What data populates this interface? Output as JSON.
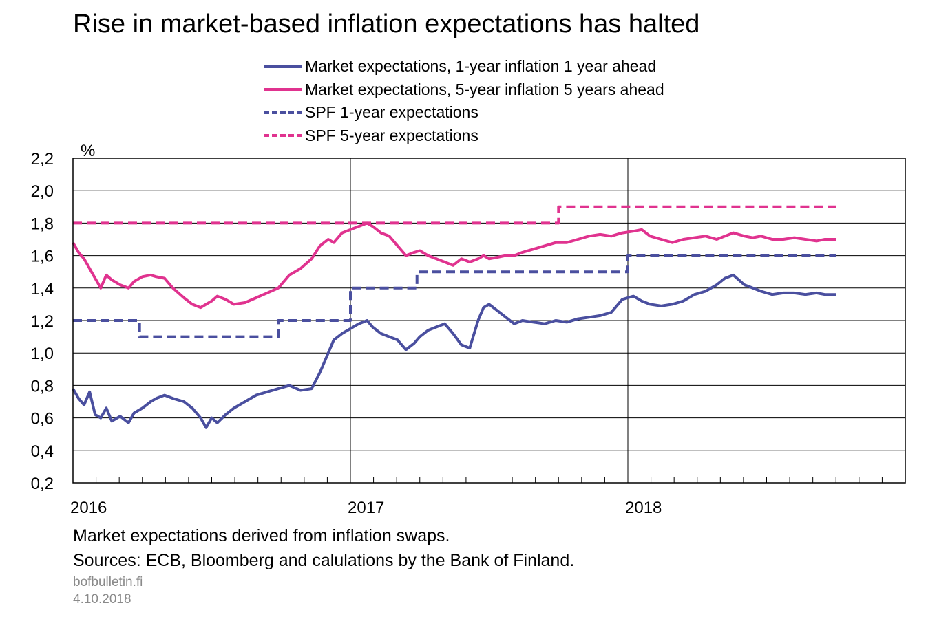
{
  "title": "Rise in market-based inflation expectations has halted",
  "notes": [
    "Market expectations derived from inflation swaps.",
    "Sources: ECB, Bloomberg and calulations by the Bank of Finland."
  ],
  "website": "bofbulletin.fi",
  "date": "4.10.2018",
  "chart_data": {
    "type": "line",
    "title": "Rise in market-based inflation expectations has halted",
    "ylabel": "%",
    "xlabel": "",
    "ylim": [
      0.2,
      2.2
    ],
    "yticks": [
      0.2,
      0.4,
      0.6,
      0.8,
      1.0,
      1.2,
      1.4,
      1.6,
      1.8,
      2.0,
      2.2
    ],
    "ytick_labels": [
      "0,2",
      "0,4",
      "0,6",
      "0,8",
      "1,0",
      "1,2",
      "1,4",
      "1,6",
      "1,8",
      "2,0",
      "2,2"
    ],
    "xlim": [
      2016.0,
      2019.0
    ],
    "xticks": [
      2016,
      2017,
      2018
    ],
    "xtick_labels": [
      "2016",
      "2017",
      "2018"
    ],
    "grid": true,
    "legend_position": "top-center",
    "series": [
      {
        "name": "Market expectations, 1-year inflation 1 year ahead",
        "color": "#4a4f9f",
        "style": "solid",
        "x": [
          2016.0,
          2016.02,
          2016.04,
          2016.06,
          2016.08,
          2016.1,
          2016.12,
          2016.14,
          2016.17,
          2016.2,
          2016.22,
          2016.25,
          2016.28,
          2016.3,
          2016.33,
          2016.36,
          2016.4,
          2016.43,
          2016.46,
          2016.48,
          2016.5,
          2016.52,
          2016.55,
          2016.58,
          2016.62,
          2016.66,
          2016.7,
          2016.74,
          2016.78,
          2016.82,
          2016.86,
          2016.89,
          2016.92,
          2016.94,
          2016.97,
          2017.0,
          2017.03,
          2017.06,
          2017.08,
          2017.11,
          2017.14,
          2017.17,
          2017.2,
          2017.23,
          2017.25,
          2017.28,
          2017.31,
          2017.34,
          2017.37,
          2017.4,
          2017.43,
          2017.46,
          2017.48,
          2017.5,
          2017.53,
          2017.56,
          2017.59,
          2017.62,
          2017.66,
          2017.7,
          2017.74,
          2017.78,
          2017.82,
          2017.86,
          2017.9,
          2017.94,
          2017.98,
          2018.02,
          2018.05,
          2018.08,
          2018.12,
          2018.16,
          2018.2,
          2018.24,
          2018.28,
          2018.32,
          2018.35,
          2018.38,
          2018.4,
          2018.42,
          2018.45,
          2018.48,
          2018.52,
          2018.56,
          2018.6,
          2018.64,
          2018.68,
          2018.71,
          2018.75
        ],
        "y": [
          0.78,
          0.72,
          0.68,
          0.76,
          0.62,
          0.6,
          0.66,
          0.58,
          0.61,
          0.57,
          0.63,
          0.66,
          0.7,
          0.72,
          0.74,
          0.72,
          0.7,
          0.66,
          0.6,
          0.54,
          0.6,
          0.57,
          0.62,
          0.66,
          0.7,
          0.74,
          0.76,
          0.78,
          0.8,
          0.77,
          0.78,
          0.88,
          1.0,
          1.08,
          1.12,
          1.15,
          1.18,
          1.2,
          1.16,
          1.12,
          1.1,
          1.08,
          1.02,
          1.06,
          1.1,
          1.14,
          1.16,
          1.18,
          1.12,
          1.05,
          1.03,
          1.2,
          1.28,
          1.3,
          1.26,
          1.22,
          1.18,
          1.2,
          1.19,
          1.18,
          1.2,
          1.19,
          1.21,
          1.22,
          1.23,
          1.25,
          1.33,
          1.35,
          1.32,
          1.3,
          1.29,
          1.3,
          1.32,
          1.36,
          1.38,
          1.42,
          1.46,
          1.48,
          1.45,
          1.42,
          1.4,
          1.38,
          1.36,
          1.37,
          1.37,
          1.36,
          1.37,
          1.36,
          1.36
        ]
      },
      {
        "name": "Market expectations, 5-year inflation 5 years ahead",
        "color": "#e0338f",
        "style": "solid",
        "x": [
          2016.0,
          2016.02,
          2016.04,
          2016.06,
          2016.08,
          2016.1,
          2016.12,
          2016.14,
          2016.17,
          2016.2,
          2016.22,
          2016.25,
          2016.28,
          2016.3,
          2016.33,
          2016.36,
          2016.4,
          2016.43,
          2016.46,
          2016.48,
          2016.5,
          2016.52,
          2016.55,
          2016.58,
          2016.62,
          2016.66,
          2016.7,
          2016.74,
          2016.78,
          2016.82,
          2016.86,
          2016.89,
          2016.92,
          2016.94,
          2016.97,
          2017.0,
          2017.03,
          2017.06,
          2017.08,
          2017.11,
          2017.14,
          2017.17,
          2017.2,
          2017.23,
          2017.25,
          2017.28,
          2017.31,
          2017.34,
          2017.37,
          2017.4,
          2017.43,
          2017.46,
          2017.48,
          2017.5,
          2017.53,
          2017.56,
          2017.59,
          2017.62,
          2017.66,
          2017.7,
          2017.74,
          2017.78,
          2017.82,
          2017.86,
          2017.9,
          2017.94,
          2017.98,
          2018.02,
          2018.05,
          2018.08,
          2018.12,
          2018.16,
          2018.2,
          2018.24,
          2018.28,
          2018.32,
          2018.35,
          2018.38,
          2018.4,
          2018.42,
          2018.45,
          2018.48,
          2018.52,
          2018.56,
          2018.6,
          2018.64,
          2018.68,
          2018.71,
          2018.75
        ],
        "y": [
          1.68,
          1.62,
          1.58,
          1.52,
          1.46,
          1.4,
          1.48,
          1.45,
          1.42,
          1.4,
          1.44,
          1.47,
          1.48,
          1.47,
          1.46,
          1.4,
          1.34,
          1.3,
          1.28,
          1.3,
          1.32,
          1.35,
          1.33,
          1.3,
          1.31,
          1.34,
          1.37,
          1.4,
          1.48,
          1.52,
          1.58,
          1.66,
          1.7,
          1.68,
          1.74,
          1.76,
          1.78,
          1.8,
          1.78,
          1.74,
          1.72,
          1.66,
          1.6,
          1.62,
          1.63,
          1.6,
          1.58,
          1.56,
          1.54,
          1.58,
          1.56,
          1.58,
          1.6,
          1.58,
          1.59,
          1.6,
          1.6,
          1.62,
          1.64,
          1.66,
          1.68,
          1.68,
          1.7,
          1.72,
          1.73,
          1.72,
          1.74,
          1.75,
          1.76,
          1.72,
          1.7,
          1.68,
          1.7,
          1.71,
          1.72,
          1.7,
          1.72,
          1.74,
          1.73,
          1.72,
          1.71,
          1.72,
          1.7,
          1.7,
          1.71,
          1.7,
          1.69,
          1.7,
          1.7
        ]
      },
      {
        "name": "SPF 1-year expectations",
        "color": "#4a4f9f",
        "style": "dashed",
        "x": [
          2016.0,
          2016.24,
          2016.24,
          2016.74,
          2016.74,
          2017.0,
          2017.0,
          2017.24,
          2017.24,
          2017.74,
          2017.74,
          2018.0,
          2018.0,
          2018.75
        ],
        "y": [
          1.2,
          1.2,
          1.1,
          1.1,
          1.2,
          1.2,
          1.4,
          1.4,
          1.5,
          1.5,
          1.5,
          1.5,
          1.6,
          1.6
        ]
      },
      {
        "name": "SPF 5-year expectations",
        "color": "#e0338f",
        "style": "dashed",
        "x": [
          2016.0,
          2017.75,
          2017.75,
          2018.75
        ],
        "y": [
          1.8,
          1.8,
          1.9,
          1.9
        ]
      }
    ]
  }
}
